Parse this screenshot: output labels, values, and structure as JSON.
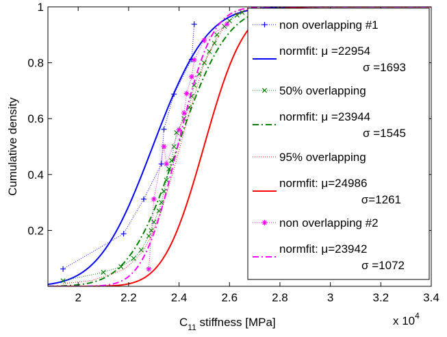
{
  "chart_data": {
    "type": "line",
    "xlabel_main": "C",
    "xlabel_sub": "11",
    "xlabel_rest": " stiffness [MPa]",
    "ylabel": "Cumulative density",
    "x_multiplier": "x 10",
    "x_multiplier_exp": "4",
    "xlim": [
      1.88,
      3.4
    ],
    "ylim": [
      0,
      1
    ],
    "x_ticks": [
      2,
      2.2,
      2.4,
      2.6,
      2.8,
      3,
      3.2,
      3.4
    ],
    "x_tick_labels": [
      "2",
      "2.2",
      "2.4",
      "2.6",
      "2.8",
      "3",
      "3.2",
      "3.4"
    ],
    "y_ticks": [
      0.2,
      0.4,
      0.6,
      0.8,
      1
    ],
    "y_tick_labels": [
      "0.2",
      "0.4",
      "0.6",
      "0.8",
      "1"
    ],
    "grid": false,
    "legend_position": "top-right",
    "series": [
      {
        "name": "non overlapping #1",
        "kind": "empirical",
        "marker": "plus",
        "color": "#0000ff",
        "x": [
          1.94,
          2.18,
          2.26,
          2.33,
          2.34,
          2.38,
          2.45,
          2.46
        ],
        "y": [
          0.062,
          0.188,
          0.312,
          0.438,
          0.562,
          0.688,
          0.812,
          0.938
        ]
      },
      {
        "name": "normfit: μ =22954",
        "name2": "σ =1693",
        "kind": "normfit",
        "mu": 2.2954,
        "sigma": 0.1693,
        "color": "#0000ff",
        "dash": ""
      },
      {
        "name": "50% overlapping",
        "kind": "empirical",
        "marker": "x",
        "color": "#008000",
        "x": [
          1.94,
          2.1,
          2.17,
          2.22,
          2.25,
          2.28,
          2.29,
          2.3,
          2.32,
          2.33,
          2.34,
          2.35,
          2.36,
          2.37,
          2.38,
          2.39,
          2.42,
          2.44,
          2.45,
          2.46,
          2.48,
          2.5,
          2.52,
          2.54,
          2.55,
          2.58,
          2.6,
          2.63,
          2.65
        ],
        "y": [
          0.02,
          0.05,
          0.07,
          0.1,
          0.13,
          0.18,
          0.2,
          0.23,
          0.27,
          0.3,
          0.34,
          0.38,
          0.42,
          0.45,
          0.5,
          0.55,
          0.6,
          0.64,
          0.68,
          0.72,
          0.76,
          0.8,
          0.84,
          0.87,
          0.9,
          0.93,
          0.95,
          0.97,
          0.98
        ]
      },
      {
        "name": "normfit: μ =23944",
        "name2": "σ =1545",
        "kind": "normfit",
        "mu": 2.3944,
        "sigma": 0.1545,
        "color": "#008000",
        "dash": "9 4 2 4"
      },
      {
        "name": "95% overlapping",
        "kind": "empirical",
        "marker": "none",
        "color": "#ff0000",
        "x": [
          1.94,
          2.05,
          2.12,
          2.18,
          2.22,
          2.26,
          2.29,
          2.32,
          2.35,
          2.38,
          2.41,
          2.44,
          2.47,
          2.5,
          2.54,
          2.58,
          2.62,
          2.67
        ],
        "y": [
          0.01,
          0.02,
          0.04,
          0.06,
          0.09,
          0.13,
          0.18,
          0.25,
          0.33,
          0.42,
          0.52,
          0.62,
          0.71,
          0.8,
          0.87,
          0.93,
          0.97,
          0.99
        ]
      },
      {
        "name": "normfit: μ=24986",
        "name2": "σ=1261",
        "kind": "normfit",
        "mu": 2.4986,
        "sigma": 0.1261,
        "color": "#ff0000",
        "dash": ""
      },
      {
        "name": "non overlapping #2",
        "kind": "empirical",
        "marker": "asterisk",
        "color": "#ff00ff",
        "x": [
          2.28,
          2.3,
          2.34,
          2.35,
          2.4,
          2.42,
          2.43,
          2.45,
          2.46,
          2.5,
          2.59
        ],
        "y": [
          0.062,
          0.312,
          0.5,
          0.438,
          0.56,
          0.62,
          0.69,
          0.75,
          0.81,
          0.88,
          0.938
        ]
      },
      {
        "name": "normfit: μ=23942",
        "name2": "σ =1072",
        "kind": "normfit",
        "mu": 2.3942,
        "sigma": 0.1072,
        "color": "#ff00ff",
        "dash": "9 4 2 4"
      }
    ]
  }
}
